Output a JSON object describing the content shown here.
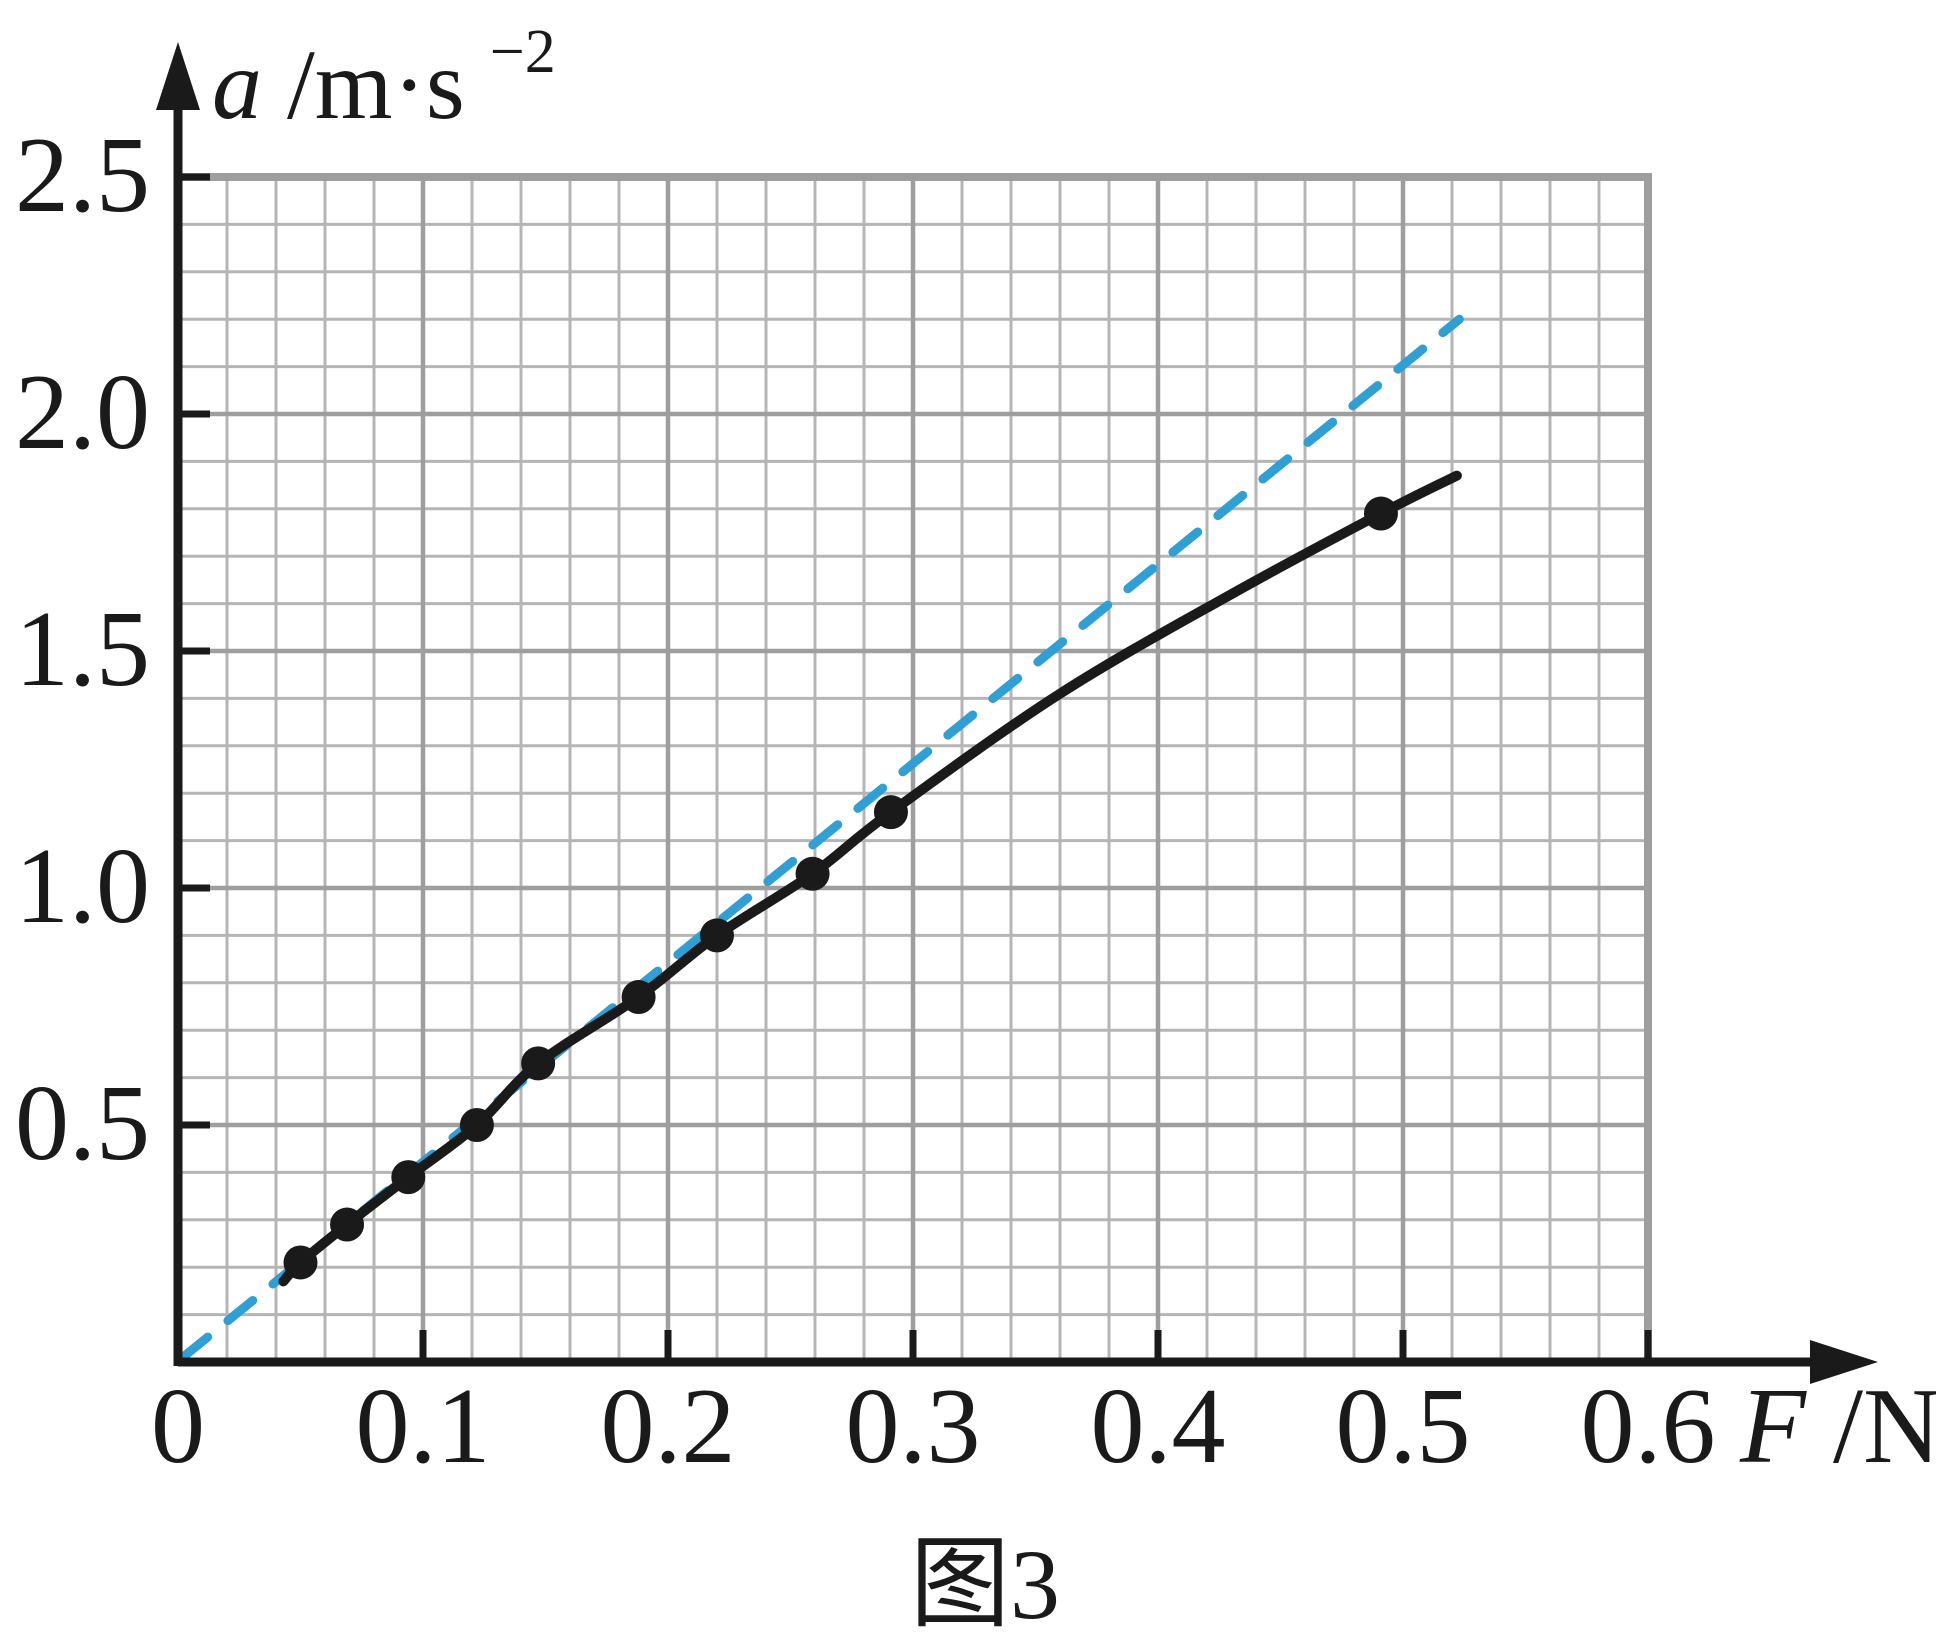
{
  "page": {
    "background": "#ffffff",
    "caption": "图3"
  },
  "chart_data": {
    "type": "scatter",
    "title": "图3",
    "xlabel": "F/N",
    "xlabel_var": "F",
    "xlabel_rest": "/N",
    "ylabel": "a/m·s⁻²",
    "ylabel_var": "a",
    "ylabel_rest": "/m·s",
    "ylabel_sup": "−2",
    "xlim": [
      0,
      0.6
    ],
    "ylim": [
      0,
      2.5
    ],
    "x_tick_values": [
      0,
      0.1,
      0.2,
      0.3,
      0.4,
      0.5,
      0.6
    ],
    "x_tick_labels": [
      "0",
      "0.1",
      "0.2",
      "0.3",
      "0.4",
      "0.5",
      "0.6"
    ],
    "y_tick_values": [
      0.5,
      1.0,
      1.5,
      2.0,
      2.5
    ],
    "y_tick_labels": [
      "0.5",
      "1.0",
      "1.5",
      "2.0",
      "2.5"
    ],
    "grid": {
      "on": true,
      "minor_x_step_N": 0.02,
      "minor_y_step_ms2": 0.1,
      "major_x_step_N": 0.1,
      "major_y_step_ms2": 0.5
    },
    "series": [
      {
        "name": "measured-data-points",
        "marker": "filled-circle",
        "points": [
          [
            0.05,
            0.21
          ],
          [
            0.069,
            0.29
          ],
          [
            0.094,
            0.39
          ],
          [
            0.122,
            0.5
          ],
          [
            0.147,
            0.63
          ],
          [
            0.188,
            0.77
          ],
          [
            0.22,
            0.9
          ],
          [
            0.259,
            1.03
          ],
          [
            0.291,
            1.16
          ],
          [
            0.491,
            1.79
          ]
        ]
      }
    ],
    "curve_anchor_points": [
      [
        0.043,
        0.17
      ],
      [
        0.05,
        0.21
      ],
      [
        0.069,
        0.29
      ],
      [
        0.094,
        0.39
      ],
      [
        0.122,
        0.5
      ],
      [
        0.147,
        0.63
      ],
      [
        0.188,
        0.77
      ],
      [
        0.22,
        0.9
      ],
      [
        0.259,
        1.03
      ],
      [
        0.291,
        1.16
      ],
      [
        0.36,
        1.41
      ],
      [
        0.43,
        1.62
      ],
      [
        0.491,
        1.79
      ],
      [
        0.522,
        1.87
      ]
    ],
    "dashed_reference_line": {
      "from": [
        0.002,
        0.01
      ],
      "to": [
        0.523,
        2.2
      ],
      "style": "dashed"
    },
    "colors": {
      "axis": "#1a1a1a",
      "curve": "#1a1a1a",
      "points": "#1a1a1a",
      "dashed_line": "#2f9fd4",
      "grid_minor": "#b5b5b5",
      "grid_major": "#9e9e9e",
      "grid_border": "#9e9e9e",
      "background": "#ffffff"
    }
  }
}
